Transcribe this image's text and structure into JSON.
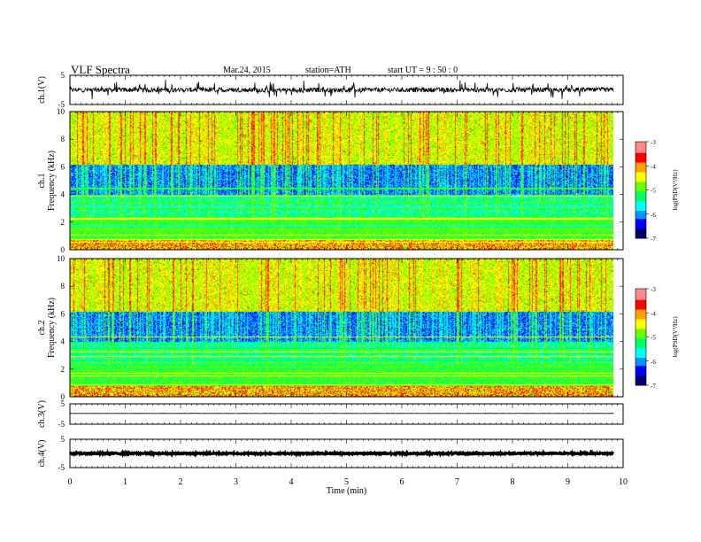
{
  "header": {
    "title": "VLF  Spectra",
    "date": "Mar.24, 2015",
    "station": "station=ATH",
    "start": "start  UT =   9 : 50 : 0"
  },
  "chart_data": {
    "type": "heatmap",
    "xlabel": "Time  (min)",
    "xlim": [
      0,
      10
    ],
    "xticks": [
      "0",
      "1",
      "2",
      "3",
      "4",
      "5",
      "6",
      "7",
      "8",
      "9",
      "10"
    ],
    "panels": [
      {
        "id": "ch1-wave",
        "type": "line",
        "ylabel": "ch.1(V)",
        "ylim": [
          -5,
          5
        ],
        "yticks": [
          "5",
          "-5"
        ]
      },
      {
        "id": "ch1-spec",
        "type": "heatmap",
        "ylabel": "ch.1",
        "ylabel2": "Frequency  (kHz)",
        "ylim": [
          0,
          10
        ],
        "yticks": [
          "0",
          "2",
          "4",
          "6",
          "8",
          "10"
        ],
        "colorbar": {
          "label": "log(PSD(V²/Hz)",
          "range": [
            -7,
            -3
          ],
          "ticks": [
            "-3",
            "-4",
            "-5",
            "-6",
            "-7"
          ]
        }
      },
      {
        "id": "ch2-spec",
        "type": "heatmap",
        "ylabel": "ch.2",
        "ylabel2": "Frequency  (kHz)",
        "ylim": [
          0,
          10
        ],
        "yticks": [
          "0",
          "2",
          "4",
          "6",
          "8",
          "10"
        ],
        "colorbar": {
          "label": "log(PSD(V²/Hz)",
          "range": [
            -7,
            -3
          ],
          "ticks": [
            "-3",
            "-4",
            "-5",
            "-6",
            "-7"
          ]
        }
      },
      {
        "id": "ch3-wave",
        "type": "line",
        "ylabel": "ch.3(V)",
        "ylim": [
          -5,
          5
        ],
        "yticks": [
          "5",
          "-5"
        ]
      },
      {
        "id": "ch4-wave",
        "type": "line",
        "ylabel": "ch.4(V)",
        "ylim": [
          -5,
          5
        ],
        "yticks": [
          "5",
          "-5"
        ]
      }
    ],
    "data_end_min": 9.83,
    "colormap": [
      "#00006e",
      "#0000ff",
      "#0096ff",
      "#00ffff",
      "#00ff64",
      "#64ff00",
      "#ffff00",
      "#ffa000",
      "#ff0000",
      "#ff8888",
      "#ffffff"
    ]
  }
}
